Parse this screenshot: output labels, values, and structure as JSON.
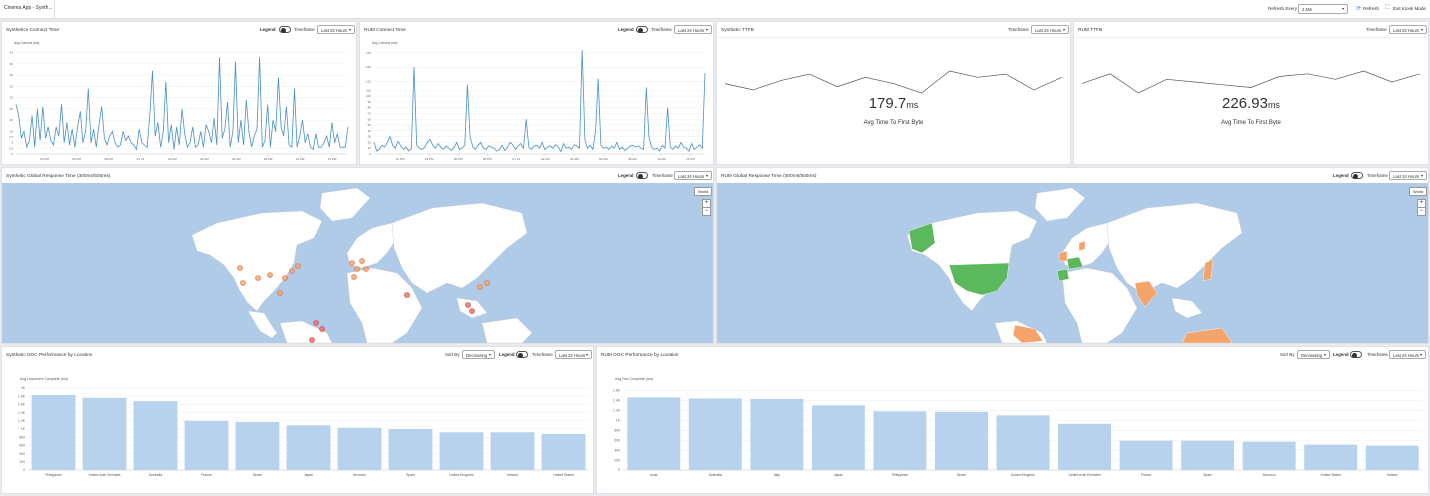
{
  "header": {
    "app_title": "Cinema App - Synth...",
    "refresh_label": "Refresh Every",
    "refresh_value": "2 Min",
    "refresh_button": "Refresh",
    "kiosk_button": "Exit Kiosk Mode"
  },
  "panels": {
    "synthetic_connect": {
      "title": "Synthetics Connect Time",
      "legend": "Legend",
      "timeframe_label": "Timeframe",
      "timeframe_value": "Last 24 Hours"
    },
    "rum_connect": {
      "title": "RUM Connect Time",
      "legend": "Legend",
      "timeframe_label": "Timeframe",
      "timeframe_value": "Last 24 Hours"
    },
    "synthetic_ttfb": {
      "title": "Synthetic TTFB",
      "timeframe_label": "Timeframe",
      "timeframe_value": "Last 24 Hours",
      "value": "179.7",
      "unit": "ms",
      "caption": "Avg Time To First Byte"
    },
    "rum_ttfb": {
      "title": "RUM TTFB",
      "timeframe_label": "Timeframe",
      "timeframe_value": "Last 24 Hours",
      "value": "226.93",
      "unit": "ms",
      "caption": "Avg Time To First Byte"
    },
    "synthetic_map": {
      "title": "Synthetic Global Response Time (300ms/500ms)",
      "legend": "Legend",
      "timeframe_label": "Timeframe",
      "timeframe_value": "Last 24 Hours",
      "mode_button": "World",
      "zoom_in": "+",
      "zoom_out": "−"
    },
    "rum_map": {
      "title": "RUM Global Response Time (300ms/500ms)",
      "legend": "Legend",
      "timeframe_label": "Timeframe",
      "timeframe_value": "Last 24 Hours",
      "mode_button": "World",
      "zoom_in": "+",
      "zoom_out": "−"
    },
    "synthetic_doc": {
      "title": "Synthetic DOC Performance by Location",
      "sort_label": "Sort By",
      "sort_value": "Decreasing",
      "legend": "Legend",
      "timeframe_label": "Timeframe",
      "timeframe_value": "Last 24 Hours"
    },
    "rum_doc": {
      "title": "RUM DOC Performance by Location",
      "sort_label": "Sort By",
      "sort_value": "Decreasing",
      "legend": "Legend",
      "timeframe_label": "Timeframe",
      "timeframe_value": "Last 24 Hours"
    }
  },
  "chart_data": [
    {
      "id": "synthetic_connect",
      "type": "line",
      "ylabel": "Avg Connect (ms)",
      "ylim": [
        0,
        47.5
      ],
      "yticks": [
        "0",
        "2.5",
        "5",
        "7.5",
        "10",
        "15",
        "20",
        "25",
        "30",
        "35",
        "40",
        "45"
      ],
      "ytick_values": [
        0,
        2.5,
        5,
        7.5,
        10,
        15,
        20,
        25,
        30,
        35,
        40,
        45
      ],
      "xticks": [
        "04 PM",
        "06 PM",
        "08 PM",
        "Fri 13",
        "02 AM",
        "04 AM",
        "06 AM",
        "08 AM",
        "10 AM",
        "12 PM"
      ],
      "color": "#4a90c8",
      "values": [
        22,
        17,
        7,
        10,
        3,
        6,
        17,
        3,
        20,
        6,
        21,
        7,
        12,
        6,
        4,
        12,
        8,
        22,
        5,
        14,
        4,
        11,
        3,
        12,
        19,
        5,
        10,
        29,
        5,
        11,
        3,
        13,
        21,
        7,
        4,
        8,
        10,
        5,
        3,
        4,
        10,
        6,
        8,
        5,
        4,
        2,
        11,
        5,
        4,
        3,
        18,
        37,
        8,
        14,
        3,
        10,
        32,
        5,
        13,
        2,
        12,
        4,
        20,
        9,
        3,
        5,
        12,
        3,
        4,
        10,
        3,
        13,
        10,
        5,
        16,
        4,
        43,
        7,
        11,
        23,
        3,
        10,
        41,
        5,
        15,
        4,
        24,
        10,
        3,
        8,
        11,
        43,
        3,
        6,
        22,
        3,
        15,
        10,
        34,
        12,
        8,
        21,
        4,
        3,
        29,
        3,
        8,
        15,
        5,
        9,
        3,
        2,
        9,
        3,
        3,
        5,
        8,
        3,
        14,
        5,
        9,
        3,
        3,
        3,
        12
      ]
    },
    {
      "id": "rum_connect",
      "type": "line",
      "ylabel": "Avg Connect (ms)",
      "ylim": [
        0,
        185
      ],
      "yticks": [
        "0",
        "10",
        "20",
        "30",
        "40",
        "50",
        "60",
        "70",
        "80",
        "90",
        "100",
        "110",
        "125",
        "150",
        "175"
      ],
      "ytick_values": [
        0,
        10,
        20,
        30,
        40,
        50,
        60,
        70,
        80,
        90,
        100,
        110,
        125,
        150,
        175
      ],
      "xticks": [
        "02 PM",
        "04 PM",
        "06 PM",
        "08 PM",
        "Fri 13",
        "02 AM",
        "04 AM",
        "06 AM",
        "08 AM",
        "10 AM",
        "12 PM"
      ],
      "color": "#4a90c8",
      "values": [
        20,
        5,
        8,
        15,
        12,
        20,
        30,
        15,
        10,
        22,
        14,
        8,
        12,
        5,
        10,
        150,
        15,
        10,
        8,
        12,
        20,
        25,
        15,
        10,
        18,
        12,
        8,
        14,
        10,
        6,
        12,
        20,
        8,
        10,
        15,
        120,
        30,
        12,
        8,
        15,
        20,
        10,
        8,
        14,
        12,
        10,
        5,
        8,
        15,
        6,
        12,
        20,
        16,
        8,
        14,
        18,
        10,
        60,
        12,
        8,
        14,
        15,
        10,
        20,
        8,
        12,
        14,
        10,
        16,
        12,
        4,
        18,
        10,
        12,
        8,
        16,
        14,
        10,
        180,
        25,
        10,
        15,
        8,
        40,
        130,
        15,
        10,
        12,
        8,
        14,
        10,
        20,
        8,
        12,
        6,
        10,
        14,
        15,
        12,
        14,
        10,
        8,
        115,
        30,
        12,
        8,
        10,
        5,
        15,
        10,
        80,
        12,
        8,
        14,
        10,
        20,
        12,
        10,
        5,
        18,
        8,
        12,
        16,
        10,
        140
      ]
    },
    {
      "id": "synthetic_ttfb_spark",
      "type": "line",
      "values": [
        182,
        178,
        184,
        188,
        180,
        186,
        182,
        176,
        190,
        186,
        188,
        178,
        186
      ]
    },
    {
      "id": "rum_ttfb_spark",
      "type": "line",
      "values": [
        225,
        232,
        218,
        228,
        226,
        224,
        222,
        230,
        232,
        228,
        234,
        226,
        232
      ]
    },
    {
      "id": "synthetic_doc",
      "type": "bar",
      "ylabel": "Avg Document Complete (ms)",
      "ylim": [
        0,
        2000
      ],
      "yticks": [
        "0",
        "200",
        "400",
        "600",
        "800",
        "1K",
        "1.2K",
        "1.4K",
        "1.6K",
        "1.8K",
        "2K"
      ],
      "ytick_values": [
        0,
        200,
        400,
        600,
        800,
        1000,
        1200,
        1400,
        1600,
        1800,
        2000
      ],
      "categories": [
        "Philippines",
        "United Arab Emirates",
        "Australia",
        "France",
        "Brazil",
        "Japan",
        "Morocco",
        "Spain",
        "United Kingdom",
        "Ireland",
        "United States"
      ],
      "values": [
        1830,
        1760,
        1680,
        1200,
        1170,
        1090,
        1030,
        1000,
        920,
        920,
        880
      ],
      "color": "#b7d2ec"
    },
    {
      "id": "rum_doc",
      "type": "bar",
      "ylabel": "Avg Doc Complete (ms)",
      "ylim": [
        0,
        1650
      ],
      "yticks": [
        "0",
        "200",
        "400",
        "600",
        "800",
        "1K",
        "1.2K",
        "1.4K",
        "1.6K"
      ],
      "ytick_values": [
        0,
        200,
        400,
        600,
        800,
        1000,
        1200,
        1400,
        1600
      ],
      "categories": [
        "India",
        "Australia",
        "Italy",
        "Japan",
        "Philippines",
        "Brazil",
        "United Kingdom",
        "United Arab Emirates",
        "France",
        "Spain",
        "Morocco",
        "United States",
        "Ireland"
      ],
      "values": [
        1460,
        1440,
        1430,
        1300,
        1180,
        1170,
        1100,
        930,
        590,
        590,
        570,
        510,
        490
      ],
      "color": "#b7d2ec"
    }
  ]
}
